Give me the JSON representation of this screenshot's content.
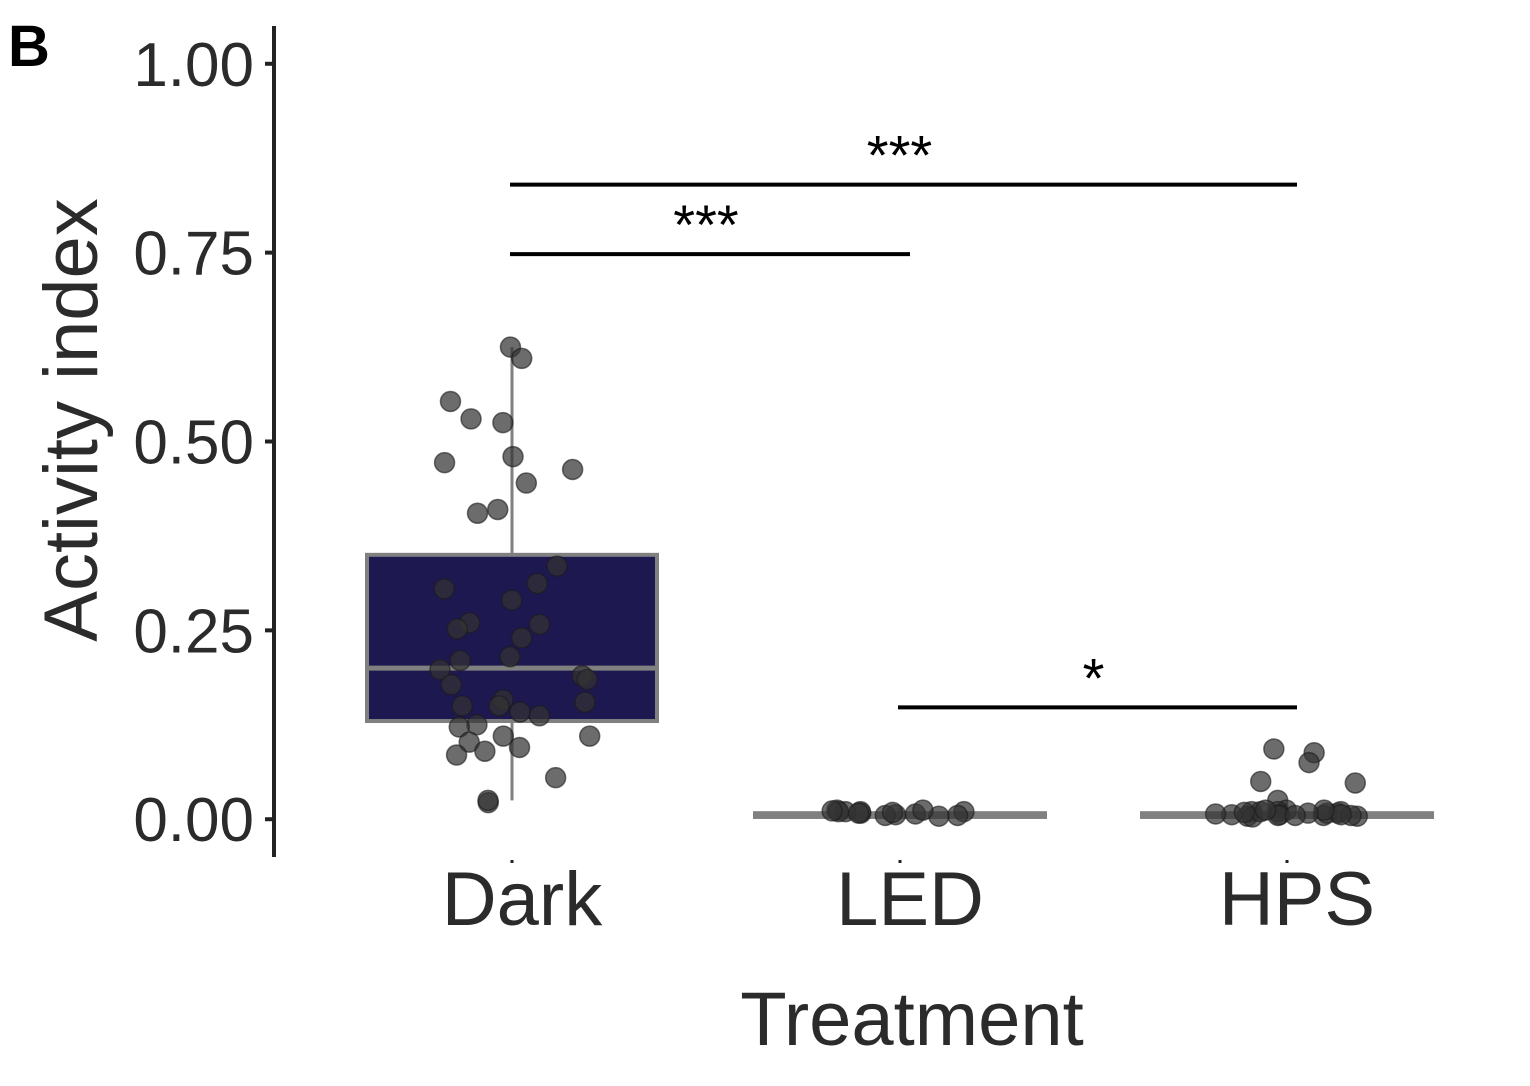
{
  "panel_label": "B",
  "chart_data": {
    "type": "box",
    "xlabel": "Treatment",
    "ylabel": "Activity index",
    "ylim": [
      -0.05,
      1.05
    ],
    "yticks": [
      0.0,
      0.25,
      0.5,
      0.75,
      1.0
    ],
    "ytick_labels": [
      "0.00",
      "0.25",
      "0.50",
      "0.75",
      "1.00"
    ],
    "categories": [
      "Dark",
      "LED",
      "HPS"
    ],
    "grid": false,
    "legend": "none",
    "colors": {
      "box_fill_Dark": "#1e1850",
      "box_line": "#808080",
      "points": "#333333"
    },
    "boxes": [
      {
        "category": "Dark",
        "q1": 0.13,
        "median": 0.2,
        "q3": 0.35,
        "whisker_low": 0.025,
        "whisker_high": 0.625
      },
      {
        "category": "LED",
        "q1": 0.003,
        "median": 0.005,
        "q3": 0.008,
        "whisker_low": 0.0,
        "whisker_high": 0.015
      },
      {
        "category": "HPS",
        "q1": 0.003,
        "median": 0.005,
        "q3": 0.008,
        "whisker_low": 0.0,
        "whisker_high": 0.02
      }
    ],
    "points": [
      {
        "category": "Dark",
        "values": [
          0.625,
          0.61,
          0.553,
          0.53,
          0.525,
          0.48,
          0.472,
          0.463,
          0.445,
          0.41,
          0.405,
          0.335,
          0.312,
          0.305,
          0.29,
          0.26,
          0.258,
          0.252,
          0.24,
          0.215,
          0.21,
          0.198,
          0.19,
          0.185,
          0.178,
          0.158,
          0.155,
          0.15,
          0.15,
          0.142,
          0.137,
          0.125,
          0.122,
          0.11,
          0.11,
          0.102,
          0.095,
          0.09,
          0.085,
          0.055,
          0.022,
          0.025
        ]
      },
      {
        "category": "LED",
        "values": [
          0.012,
          0.01,
          0.008,
          0.005,
          0.006,
          0.01,
          0.007,
          0.005,
          0.004,
          0.012,
          0.01,
          0.008,
          0.009,
          0.01,
          0.011
        ]
      },
      {
        "category": "HPS",
        "values": [
          0.093,
          0.088,
          0.075,
          0.048,
          0.05,
          0.025,
          0.012,
          0.01,
          0.008,
          0.006,
          0.005,
          0.01,
          0.004,
          0.005,
          0.006,
          0.003,
          0.008,
          0.01,
          0.004,
          0.005,
          0.006,
          0.012,
          0.008,
          0.005,
          0.007,
          0.01,
          0.012,
          0.009
        ]
      }
    ],
    "annotations": [
      {
        "from": "Dark",
        "to": "HPS",
        "y": 0.84,
        "label": "***"
      },
      {
        "from": "Dark",
        "to": "LED",
        "y": 0.748,
        "label": "***"
      },
      {
        "from": "LED",
        "to": "HPS",
        "y": 0.148,
        "label": "*"
      }
    ]
  }
}
